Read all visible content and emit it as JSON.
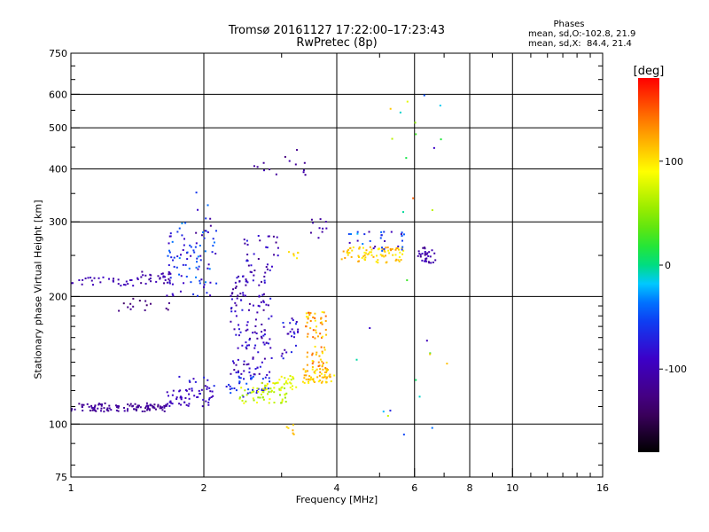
{
  "chart_data": {
    "type": "scatter",
    "title": "Tromsø 20161127 17:22:00–17:23:43",
    "subtitle": "RwPretec (8p)",
    "xlabel": "Frequency [MHz]",
    "ylabel": "Stationary phase Virtual Height [km]",
    "x_scale": "log",
    "y_scale": "log",
    "xlim": [
      1,
      16
    ],
    "ylim": [
      75,
      750
    ],
    "x_ticks": [
      1,
      2,
      4,
      6,
      8,
      10,
      16
    ],
    "x_tick_labels": [
      "1",
      "2",
      "4",
      "6",
      "8",
      "10",
      "16"
    ],
    "y_ticks": [
      75,
      100,
      200,
      300,
      400,
      500,
      600,
      750
    ],
    "y_tick_labels": [
      "75",
      "100",
      "200",
      "300",
      "400",
      "500",
      "600",
      "750"
    ],
    "grid": true,
    "colorbar": {
      "label": "[deg]",
      "range": [
        -180,
        180
      ],
      "ticks": [
        -100,
        0,
        100
      ],
      "tick_labels": [
        "-100",
        "0",
        "100"
      ],
      "colormap": "rainbow"
    },
    "stats": {
      "heading": "Phases",
      "line_o": "mean, sd,O:-102.8, 21.9",
      "line_x": "mean, sd,X:  84.4, 21.4"
    },
    "clusters": [
      {
        "x": [
          1.0,
          1.65
        ],
        "y": [
          107,
          112
        ],
        "phase": [
          -125,
          -105
        ],
        "n": 110
      },
      {
        "x": [
          1.65,
          2.1
        ],
        "y": [
          110,
          122
        ],
        "phase": [
          -105,
          -85
        ],
        "n": 45
      },
      {
        "x": [
          1.75,
          2.12
        ],
        "y": [
          114,
          130
        ],
        "phase": [
          -100,
          -60
        ],
        "n": 18
      },
      {
        "x": [
          1.0,
          1.42
        ],
        "y": [
          212,
          222
        ],
        "phase": [
          -110,
          -90
        ],
        "n": 30
      },
      {
        "x": [
          1.42,
          1.7
        ],
        "y": [
          214,
          230
        ],
        "phase": [
          -125,
          -95
        ],
        "n": 30
      },
      {
        "x": [
          1.28,
          1.7
        ],
        "y": [
          185,
          200
        ],
        "phase": [
          -140,
          -110
        ],
        "n": 15
      },
      {
        "x": [
          1.65,
          2.15
        ],
        "y": [
          200,
          290
        ],
        "phase": [
          -100,
          -30
        ],
        "n": 85
      },
      {
        "x": [
          1.75,
          2.1
        ],
        "y": [
          260,
          375
        ],
        "phase": [
          -120,
          -20
        ],
        "n": 10
      },
      {
        "x": [
          2.25,
          2.85
        ],
        "y": [
          115,
          130
        ],
        "phase": [
          -80,
          -40
        ],
        "n": 40
      },
      {
        "x": [
          2.3,
          2.85
        ],
        "y": [
          130,
          230
        ],
        "phase": [
          -120,
          -70
        ],
        "n": 140
      },
      {
        "x": [
          2.45,
          2.95
        ],
        "y": [
          230,
          280
        ],
        "phase": [
          -125,
          -70
        ],
        "n": 30
      },
      {
        "x": [
          2.4,
          3.1
        ],
        "y": [
          112,
          122
        ],
        "phase": [
          50,
          90
        ],
        "n": 50
      },
      {
        "x": [
          2.7,
          3.25
        ],
        "y": [
          120,
          130
        ],
        "phase": [
          60,
          100
        ],
        "n": 35
      },
      {
        "x": [
          3.0,
          3.3
        ],
        "y": [
          140,
          180
        ],
        "phase": [
          -110,
          -60
        ],
        "n": 25
      },
      {
        "x": [
          3.35,
          3.95
        ],
        "y": [
          125,
          135
        ],
        "phase": [
          90,
          130
        ],
        "n": 60
      },
      {
        "x": [
          3.4,
          3.8
        ],
        "y": [
          135,
          185
        ],
        "phase": [
          90,
          150
        ],
        "n": 70
      },
      {
        "x": [
          2.55,
          3.4
        ],
        "y": [
          380,
          450
        ],
        "phase": [
          -130,
          -100
        ],
        "n": 14
      },
      {
        "x": [
          3.4,
          3.8
        ],
        "y": [
          275,
          305
        ],
        "phase": [
          -120,
          -100
        ],
        "n": 10
      },
      {
        "x": [
          3.05,
          3.3
        ],
        "y": [
          245,
          255
        ],
        "phase": [
          95,
          115
        ],
        "n": 6
      },
      {
        "x": [
          4.1,
          5.7
        ],
        "y": [
          240,
          262
        ],
        "phase": [
          90,
          130
        ],
        "n": 80
      },
      {
        "x": [
          4.1,
          5.7
        ],
        "y": [
          255,
          285
        ],
        "phase": [
          -110,
          -20
        ],
        "n": 30
      },
      {
        "x": [
          6.1,
          6.7
        ],
        "y": [
          240,
          262
        ],
        "phase": [
          -120,
          -90
        ],
        "n": 30
      },
      {
        "x": [
          5.0,
          7.2
        ],
        "y": [
          300,
          600
        ],
        "phase": [
          -110,
          150
        ],
        "n": 14
      },
      {
        "x": [
          4.4,
          7.2
        ],
        "y": [
          90,
          230
        ],
        "phase": [
          -100,
          130
        ],
        "n": 14
      },
      {
        "x": [
          3.0,
          3.25
        ],
        "y": [
          92,
          100
        ],
        "phase": [
          95,
          120
        ],
        "n": 6
      }
    ]
  }
}
